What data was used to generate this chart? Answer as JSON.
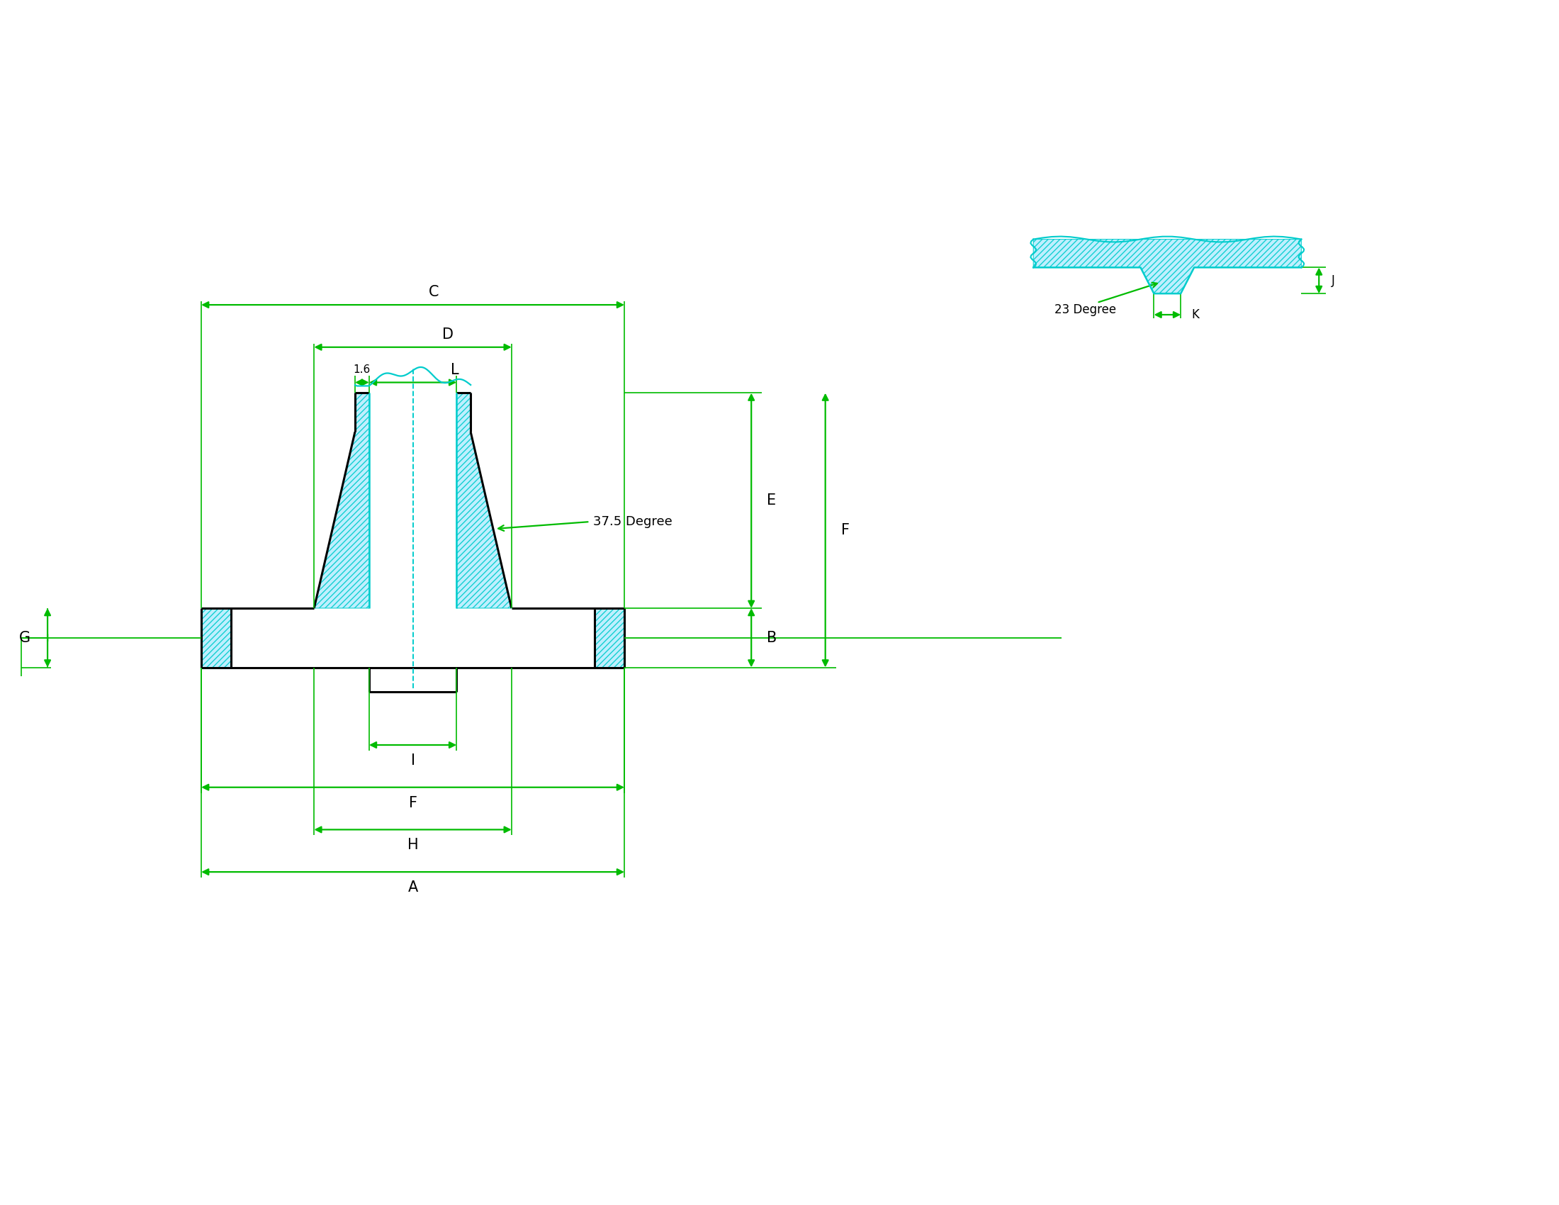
{
  "bg_color": "#ffffff",
  "green": "#00bb00",
  "cyan": "#00cccc",
  "black": "#000000",
  "labels": {
    "A": "A",
    "B": "B",
    "C": "C",
    "D": "D",
    "E": "E",
    "F": "F",
    "G": "G",
    "H": "H",
    "I": "I",
    "J": "J",
    "K": "K",
    "L": "L",
    "L16": "1.6",
    "deg375": "37.5 Degree",
    "deg23": "23 Degree"
  },
  "fig_width": 22.0,
  "fig_height": 17.0
}
